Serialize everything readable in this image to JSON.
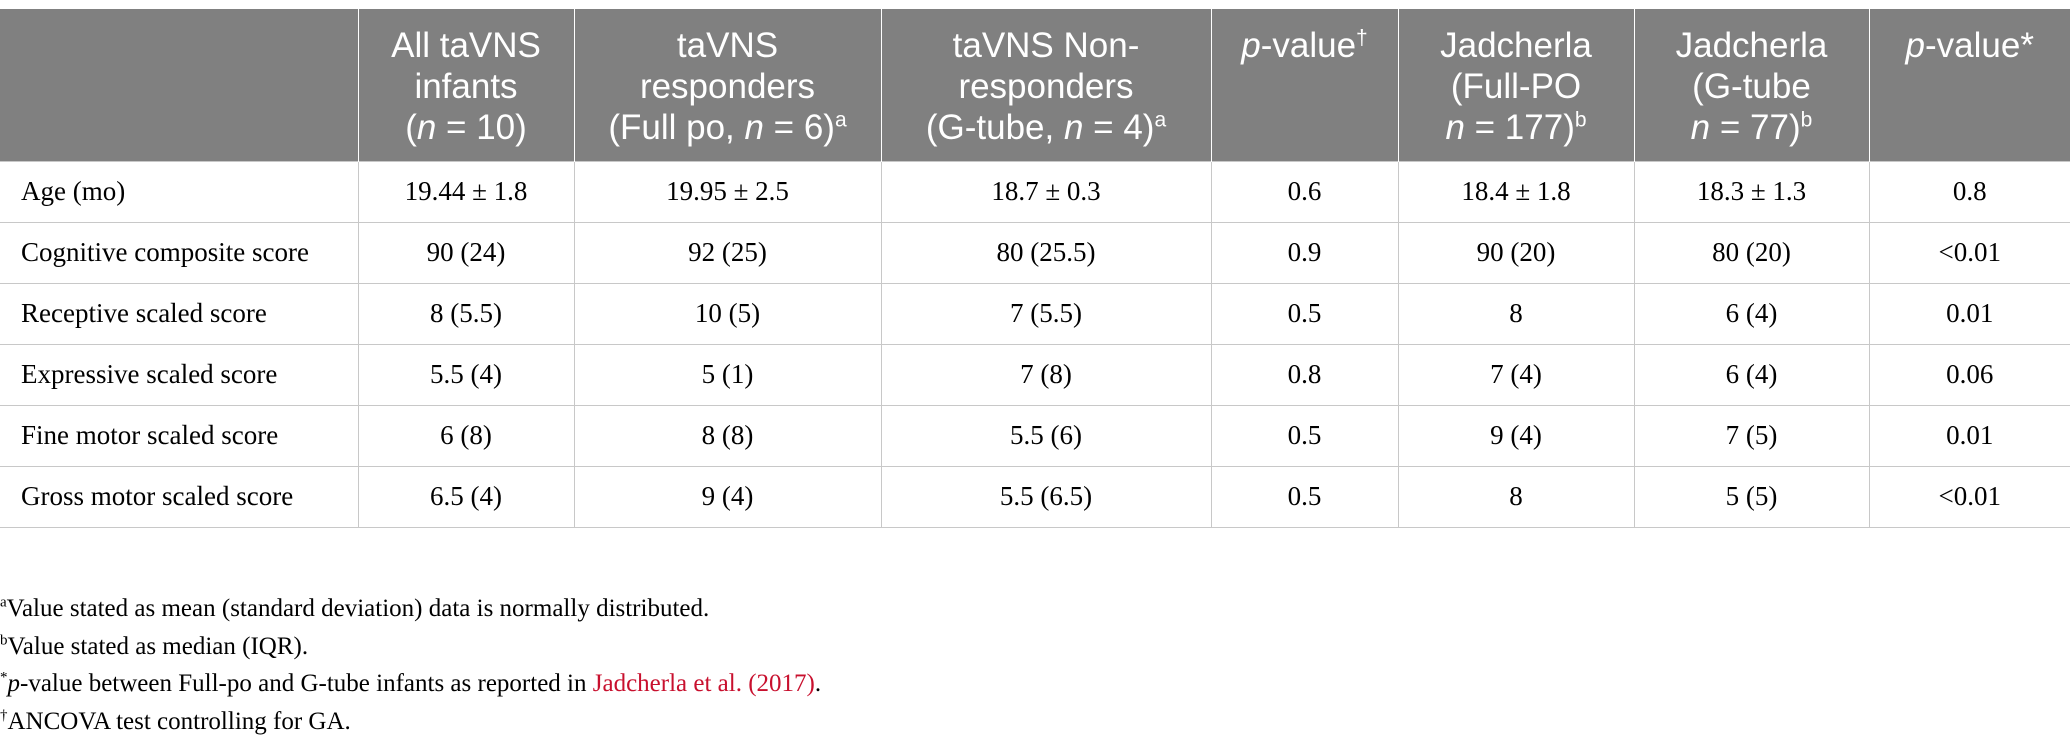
{
  "table": {
    "header": [
      {
        "lines": []
      },
      {
        "lines": [
          [
            {
              "text": "All taVNS"
            }
          ],
          [
            {
              "text": "infants"
            }
          ],
          [
            {
              "text": "("
            },
            {
              "text": "n",
              "style": "italic"
            },
            {
              "text": " = 10)"
            }
          ]
        ]
      },
      {
        "lines": [
          [
            {
              "text": "taVNS"
            }
          ],
          [
            {
              "text": "responders"
            }
          ],
          [
            {
              "text": "(Full po, "
            },
            {
              "text": "n",
              "style": "italic"
            },
            {
              "text": " = 6)"
            },
            {
              "text": "a",
              "style": "sup"
            }
          ]
        ]
      },
      {
        "lines": [
          [
            {
              "text": "taVNS Non-"
            }
          ],
          [
            {
              "text": "responders"
            }
          ],
          [
            {
              "text": "(G-tube, "
            },
            {
              "text": "n",
              "style": "italic"
            },
            {
              "text": " = 4)"
            },
            {
              "text": "a",
              "style": "sup"
            }
          ]
        ]
      },
      {
        "lines": [
          [
            {
              "text": "p",
              "style": "italic"
            },
            {
              "text": "-value"
            },
            {
              "text": "†",
              "style": "sup"
            }
          ]
        ]
      },
      {
        "lines": [
          [
            {
              "text": "Jadcherla"
            }
          ],
          [
            {
              "text": "(Full-PO"
            }
          ],
          [
            {
              "text": "n",
              "style": "italic"
            },
            {
              "text": " = 177)"
            },
            {
              "text": "b",
              "style": "sup"
            }
          ]
        ]
      },
      {
        "lines": [
          [
            {
              "text": "Jadcherla"
            }
          ],
          [
            {
              "text": "(G-tube"
            }
          ],
          [
            {
              "text": "n",
              "style": "italic"
            },
            {
              "text": " = 77)"
            },
            {
              "text": "b",
              "style": "sup"
            }
          ]
        ]
      },
      {
        "lines": [
          [
            {
              "text": "p",
              "style": "italic"
            },
            {
              "text": "-value*"
            }
          ]
        ]
      }
    ],
    "rows": [
      [
        "Age (mo)",
        "19.44 ± 1.8",
        "19.95 ± 2.5",
        "18.7 ± 0.3",
        "0.6",
        "18.4 ± 1.8",
        "18.3 ± 1.3",
        "0.8"
      ],
      [
        "Cognitive composite score",
        "90 (24)",
        "92 (25)",
        "80 (25.5)",
        "0.9",
        "90 (20)",
        "80 (20)",
        "<0.01"
      ],
      [
        "Receptive scaled score",
        "8 (5.5)",
        "10 (5)",
        "7 (5.5)",
        "0.5",
        "8",
        "6 (4)",
        "0.01"
      ],
      [
        "Expressive scaled score",
        "5.5 (4)",
        "5 (1)",
        "7 (8)",
        "0.8",
        "7 (4)",
        "6 (4)",
        "0.06"
      ],
      [
        "Fine motor scaled score",
        "6 (8)",
        "8 (8)",
        "5.5 (6)",
        "0.5",
        "9 (4)",
        "7 (5)",
        "0.01"
      ],
      [
        "Gross motor scaled score",
        "6.5 (4)",
        "9 (4)",
        "5.5 (6.5)",
        "0.5",
        "8",
        "5 (5)",
        "<0.01"
      ]
    ]
  },
  "footnotes": [
    [
      {
        "text": "a",
        "style": "sup"
      },
      {
        "text": "Value stated as mean (standard deviation) data is normally distributed."
      }
    ],
    [
      {
        "text": "b",
        "style": "sup"
      },
      {
        "text": "Value stated as median (IQR)."
      }
    ],
    [
      {
        "text": "*",
        "style": "sup"
      },
      {
        "text": "p",
        "style": "italic"
      },
      {
        "text": "-value between Full-po and G-tube infants as reported in "
      },
      {
        "text": "Jadcherla et al. (2017)",
        "style": "link"
      },
      {
        "text": "."
      }
    ],
    [
      {
        "text": "†",
        "style": "sup"
      },
      {
        "text": "ANCOVA test controlling for GA."
      }
    ]
  ]
}
